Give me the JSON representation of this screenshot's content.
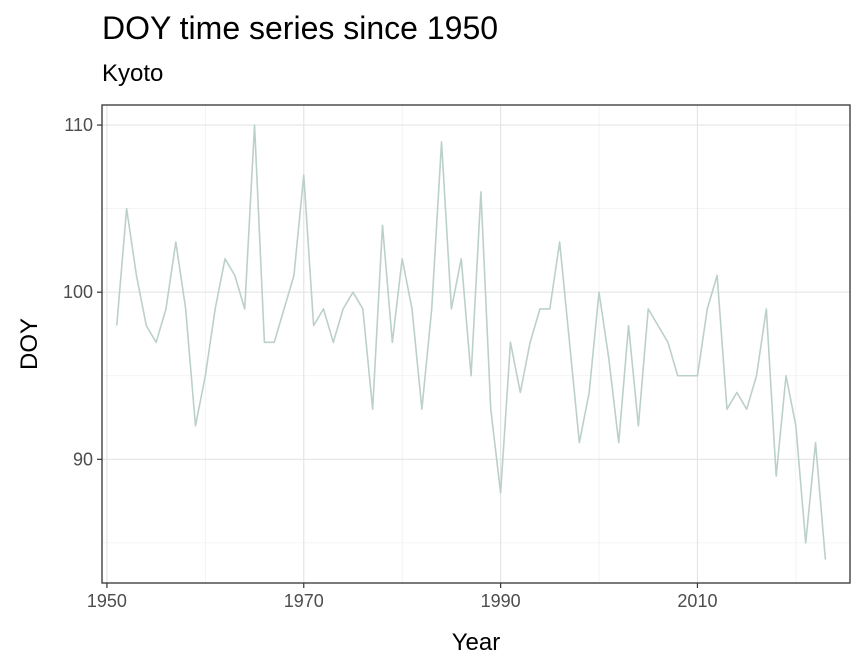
{
  "chart_data": {
    "type": "line",
    "title": "DOY time series since 1950",
    "subtitle": "Kyoto",
    "xlabel": "Year",
    "ylabel": "DOY",
    "xlim": [
      1949.5,
      2025.5
    ],
    "ylim": [
      82.6,
      111.2
    ],
    "x_ticks": [
      1950,
      1970,
      1990,
      2010
    ],
    "y_ticks": [
      90,
      100,
      110
    ],
    "x_minor_ticks": [
      1960,
      1980,
      2000,
      2020
    ],
    "y_minor_ticks": [
      85,
      95,
      105
    ],
    "grid": true,
    "line_color": "#bcd0cb",
    "series": [
      {
        "x": [
          1951,
          1952,
          1953,
          1954,
          1955,
          1956,
          1957,
          1958,
          1959,
          1960,
          1961,
          1962,
          1963,
          1964,
          1965,
          1966,
          1967,
          1968,
          1969,
          1970,
          1971,
          1972,
          1973,
          1974,
          1975,
          1976,
          1977,
          1978,
          1979,
          1980,
          1981,
          1982,
          1983,
          1984,
          1985,
          1986,
          1987,
          1988,
          1989,
          1990,
          1991,
          1992,
          1993,
          1994,
          1995,
          1996,
          1997,
          1998,
          1999,
          2000,
          2001,
          2002,
          2003,
          2004,
          2005,
          2006,
          2007,
          2008,
          2009,
          2010,
          2011,
          2012,
          2013,
          2014,
          2015,
          2016,
          2017,
          2018,
          2019,
          2020,
          2021,
          2022,
          2023
        ],
        "values": [
          98,
          105,
          101,
          98,
          97,
          99,
          103,
          99,
          92,
          95,
          99,
          102,
          101,
          99,
          110,
          97,
          97,
          99,
          101,
          107,
          98,
          99,
          97,
          99,
          100,
          99,
          93,
          104,
          97,
          102,
          99,
          93,
          99,
          109,
          99,
          102,
          95,
          106,
          93,
          88,
          97,
          94,
          97,
          99,
          99,
          103,
          97,
          91,
          94,
          100,
          96,
          91,
          98,
          92,
          99,
          98,
          97,
          95,
          95,
          95,
          99,
          101,
          93,
          94,
          93,
          95,
          99,
          89,
          95,
          92,
          85,
          91,
          84
        ]
      }
    ]
  }
}
